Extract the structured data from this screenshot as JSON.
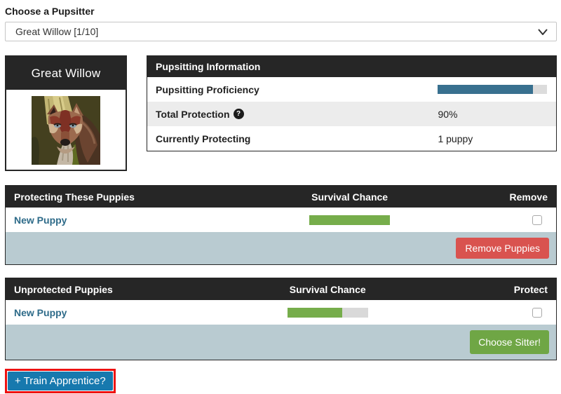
{
  "pupsitter_select": {
    "label": "Choose a Pupsitter",
    "value": "Great Willow [1/10]"
  },
  "sitter_card": {
    "name": "Great Willow"
  },
  "info_table": {
    "title": "Pupsitting Information",
    "rows": [
      {
        "label": "Pupsitting Proficiency",
        "bar_percent": 87
      },
      {
        "label": "Total Protection",
        "value": "90%"
      },
      {
        "label": "Currently Protecting",
        "value": "1 puppy"
      }
    ]
  },
  "protected_table": {
    "col1": "Protecting These Puppies",
    "col2": "Survival Chance",
    "col3": "Remove",
    "rows": [
      {
        "name": "New Puppy",
        "survival_percent": 100
      }
    ],
    "action_label": "Remove Puppies"
  },
  "unprotected_table": {
    "col1": "Unprotected Puppies",
    "col2": "Survival Chance",
    "col3": "Protect",
    "rows": [
      {
        "name": "New Puppy",
        "survival_percent": 68
      }
    ],
    "action_label": "Choose Sitter!"
  },
  "train_apprentice": {
    "label": "+ Train Apprentice?"
  },
  "icons": {
    "help_glyph": "?"
  },
  "colors": {
    "header_dark": "#262626",
    "proficiency_bar": "#38708f",
    "survival_bar": "#76ad4b",
    "footer_band": "#b9cbd1",
    "remove_button": "#d9534f",
    "choose_button": "#6fa645",
    "train_button": "#1779ae",
    "highlight_outline": "#ee1111",
    "puppy_link": "#2e6b89"
  }
}
